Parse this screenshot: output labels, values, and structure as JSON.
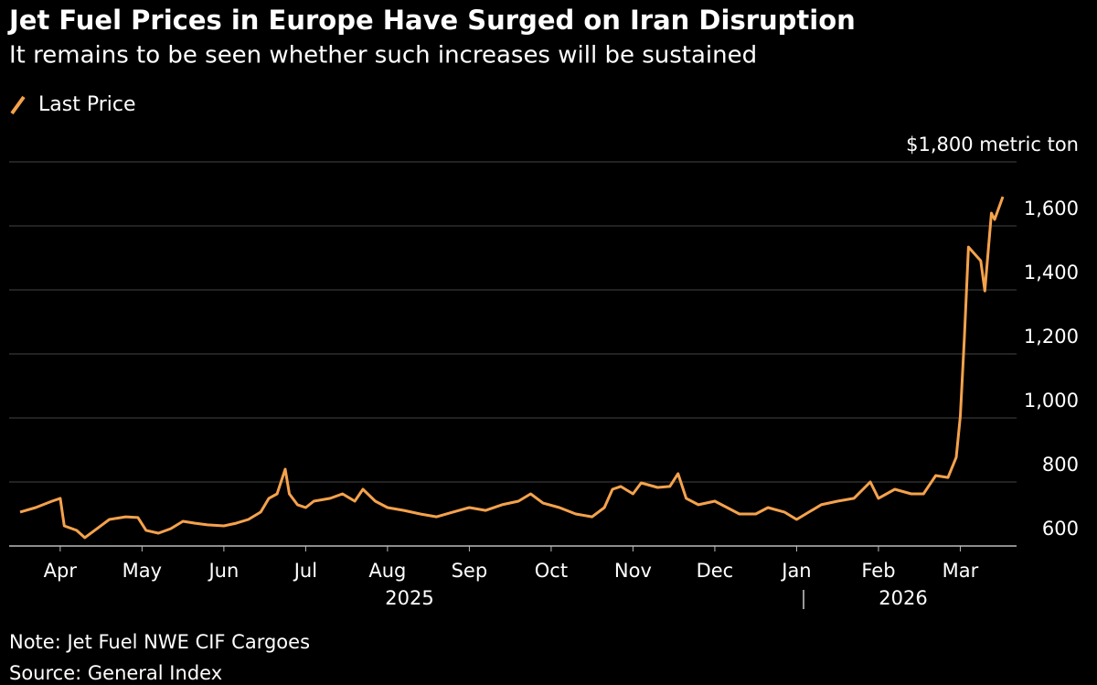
{
  "chart_data": {
    "type": "line",
    "title": "Jet Fuel Prices in Europe Have Surged on Iran Disruption",
    "subtitle": "It remains to be seen whether such increases will be sustained",
    "x": [
      -0.49,
      -0.3,
      -0.1,
      0.0,
      0.05,
      0.2,
      0.3,
      0.45,
      0.6,
      0.8,
      0.95,
      1.05,
      1.2,
      1.35,
      1.5,
      1.65,
      1.8,
      2.0,
      2.15,
      2.3,
      2.45,
      2.55,
      2.65,
      2.75,
      2.8,
      2.9,
      3.0,
      3.1,
      3.3,
      3.45,
      3.6,
      3.7,
      3.85,
      4.0,
      4.2,
      4.4,
      4.6,
      4.8,
      5.0,
      5.2,
      5.4,
      5.6,
      5.75,
      5.9,
      6.1,
      6.3,
      6.5,
      6.65,
      6.75,
      6.85,
      7.0,
      7.1,
      7.3,
      7.45,
      7.55,
      7.65,
      7.8,
      8.0,
      8.15,
      8.3,
      8.5,
      8.65,
      8.85,
      9.0,
      9.15,
      9.3,
      9.5,
      9.7,
      9.9,
      10.0,
      10.2,
      10.4,
      10.55,
      10.7,
      10.85,
      10.95,
      11.0,
      11.05,
      11.1,
      11.25,
      11.3,
      11.38,
      11.42,
      11.52
    ],
    "series": [
      {
        "name": "Last Price",
        "color": "#f5a24c",
        "values": [
          706,
          720,
          740,
          749,
          663,
          649,
          626,
          654,
          683,
          691,
          689,
          649,
          640,
          654,
          677,
          671,
          666,
          663,
          671,
          683,
          706,
          749,
          763,
          840,
          763,
          729,
          720,
          740,
          749,
          763,
          740,
          777,
          740,
          720,
          711,
          700,
          691,
          706,
          720,
          711,
          729,
          740,
          763,
          734,
          720,
          700,
          691,
          720,
          777,
          786,
          763,
          797,
          783,
          786,
          826,
          749,
          729,
          740,
          720,
          700,
          700,
          720,
          706,
          683,
          706,
          729,
          740,
          749,
          800,
          749,
          777,
          763,
          763,
          820,
          814,
          877,
          1006,
          1249,
          1534,
          1491,
          1397,
          1640,
          1620,
          1691
        ]
      }
    ],
    "xlim": [
      -0.49,
      11.52
    ],
    "xticks": [
      {
        "value": 0,
        "label": "Apr"
      },
      {
        "value": 1,
        "label": "May"
      },
      {
        "value": 2,
        "label": "Jun"
      },
      {
        "value": 3,
        "label": "Jul"
      },
      {
        "value": 4,
        "label": "Aug"
      },
      {
        "value": 5,
        "label": "Sep"
      },
      {
        "value": 6,
        "label": "Oct"
      },
      {
        "value": 7,
        "label": "Nov"
      },
      {
        "value": 8,
        "label": "Dec"
      },
      {
        "value": 9,
        "label": "Jan"
      },
      {
        "value": 10,
        "label": "Feb"
      },
      {
        "value": 11,
        "label": "Mar"
      }
    ],
    "annotations": [
      "2025",
      "2026"
    ],
    "ylim": [
      600,
      1800
    ],
    "yticks": [
      600,
      800,
      {
        "value": 1000,
        "label": "1,000"
      },
      {
        "value": 1200,
        "label": "1,200"
      },
      {
        "value": 1400,
        "label": "1,400"
      },
      {
        "value": 1600,
        "label": "1,600"
      },
      {
        "value": 1800,
        "label": "$1,800 metric ton"
      }
    ],
    "grid": true,
    "notes": [
      "Note: Jet Fuel NWE CIF Cargoes",
      "Source: General Index"
    ]
  }
}
